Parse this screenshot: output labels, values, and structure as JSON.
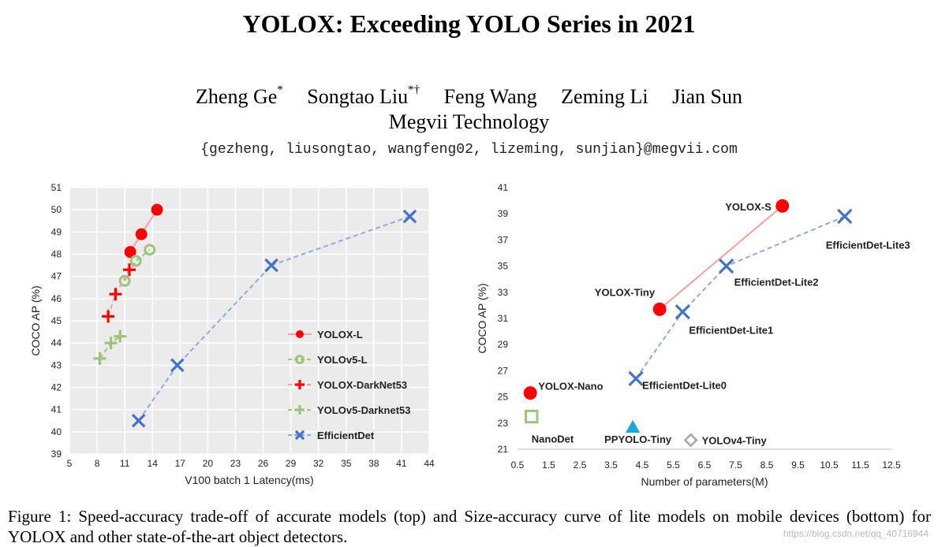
{
  "paper": {
    "title": "YOLOX: Exceeding YOLO Series in 2021",
    "authors": [
      {
        "name": "Zheng Ge",
        "mark": "*"
      },
      {
        "name": "Songtao Liu",
        "mark": "*†"
      },
      {
        "name": "Feng Wang",
        "mark": ""
      },
      {
        "name": "Zeming Li",
        "mark": ""
      },
      {
        "name": "Jian Sun",
        "mark": ""
      }
    ],
    "affiliation": "Megvii Technology",
    "email": "{gezheng, liusongtao, wangfeng02, lizeming, sunjian}@megvii.com",
    "caption": "Figure 1: Speed-accuracy trade-off of accurate models (top) and Size-accuracy curve of lite models on mobile devices (bottom) for YOLOX and other state-of-the-art object detectors.",
    "watermark": "https://blog.csdn.net/qq_40716944"
  },
  "colors": {
    "plot_bg": "#ebebeb",
    "yolox": "#ff0000",
    "yolox_line": "#f4a0a0",
    "yolov5": "#9dc37c",
    "efficientdet": "#4472c4",
    "efficientdet_line": "#8ea9db",
    "ppyolo": "#1aa7e0",
    "yolov4": "#a6a6a6"
  },
  "chart_data": [
    {
      "type": "scatter",
      "title": "",
      "xlabel": "V100 batch 1 Latency(ms)",
      "ylabel": "COCO AP (%)",
      "xlim": [
        5,
        44
      ],
      "ylim": [
        39,
        51
      ],
      "xticks": [
        "5",
        "8",
        "11",
        "14",
        "17",
        "20",
        "23",
        "26",
        "29",
        "32",
        "35",
        "38",
        "41",
        "44"
      ],
      "yticks": [
        "39",
        "40",
        "41",
        "42",
        "43",
        "44",
        "45",
        "46",
        "47",
        "48",
        "49",
        "50",
        "51"
      ],
      "grid": true,
      "legend": "bottom-right",
      "series": [
        {
          "name": "YOLOX-L",
          "marker": "filled-circle",
          "line": "solid",
          "color": "#ff0000",
          "x": [
            11.6,
            12.8,
            14.5
          ],
          "y": [
            48.1,
            48.9,
            50.0
          ]
        },
        {
          "name": "YOLOv5-L",
          "marker": "open-circle",
          "line": "dashed",
          "color": "#9dc37c",
          "x": [
            11.0,
            12.2,
            13.7
          ],
          "y": [
            46.8,
            47.7,
            48.2
          ]
        },
        {
          "name": "YOLOX-DarkNet53",
          "marker": "plus",
          "line": "dashed",
          "color": "#ff0000",
          "x": [
            9.2,
            10.0,
            11.5
          ],
          "y": [
            45.2,
            46.2,
            47.3
          ]
        },
        {
          "name": "YOLOv5-Darknet53",
          "marker": "plus",
          "line": "dashed",
          "color": "#9dc37c",
          "x": [
            8.3,
            9.5,
            10.5
          ],
          "y": [
            43.3,
            44.0,
            44.3
          ]
        },
        {
          "name": "EfficientDet",
          "marker": "x",
          "line": "dashed",
          "color": "#4472c4",
          "x": [
            12.5,
            16.7,
            26.9,
            41.9
          ],
          "y": [
            40.5,
            43.0,
            47.5,
            49.7
          ]
        }
      ]
    },
    {
      "type": "scatter",
      "title": "",
      "xlabel": "Number of parameters(M)",
      "ylabel": "COCO AP (%)",
      "xlim": [
        0.5,
        12.5
      ],
      "ylim": [
        21,
        41
      ],
      "xticks": [
        "0.5",
        "1.5",
        "2.5",
        "3.5",
        "4.5",
        "5.5",
        "6.5",
        "7.5",
        "8.5",
        "9.5",
        "10.5",
        "11.5",
        "12.5"
      ],
      "yticks": [
        "21",
        "23",
        "25",
        "27",
        "29",
        "31",
        "33",
        "35",
        "37",
        "39",
        "41"
      ],
      "grid": false,
      "series": [
        {
          "name": "YOLOX",
          "marker": "filled-circle",
          "line": "solid-partial",
          "color": "#ff0000",
          "points": [
            {
              "label": "YOLOX-Nano",
              "x": 0.91,
              "y": 25.3
            },
            {
              "label": "YOLOX-Tiny",
              "x": 5.06,
              "y": 31.7
            },
            {
              "label": "YOLOX-S",
              "x": 9.0,
              "y": 39.6
            }
          ]
        },
        {
          "name": "EfficientDet-Lite",
          "marker": "x",
          "line": "dashed",
          "color": "#4472c4",
          "points": [
            {
              "label": "EfficientDet-Lite0",
              "x": 4.3,
              "y": 26.4
            },
            {
              "label": "EfficientDet-Lite1",
              "x": 5.8,
              "y": 31.5
            },
            {
              "label": "EfficientDet-Lite2",
              "x": 7.2,
              "y": 35.0
            },
            {
              "label": "EfficientDet-Lite3",
              "x": 11.0,
              "y": 38.8
            }
          ]
        },
        {
          "name": "NanoDet",
          "marker": "open-square",
          "color": "#9dc37c",
          "points": [
            {
              "label": "NanoDet",
              "x": 0.95,
              "y": 23.5
            }
          ]
        },
        {
          "name": "PPYOLO-Tiny",
          "marker": "triangle",
          "color": "#1aa7e0",
          "points": [
            {
              "label": "PPYOLO-Tiny",
              "x": 4.2,
              "y": 22.7
            }
          ]
        },
        {
          "name": "YOLOv4-Tiny",
          "marker": "open-diamond",
          "color": "#a6a6a6",
          "points": [
            {
              "label": "YOLOv4-Tiny",
              "x": 6.06,
              "y": 21.7
            }
          ]
        }
      ]
    }
  ]
}
